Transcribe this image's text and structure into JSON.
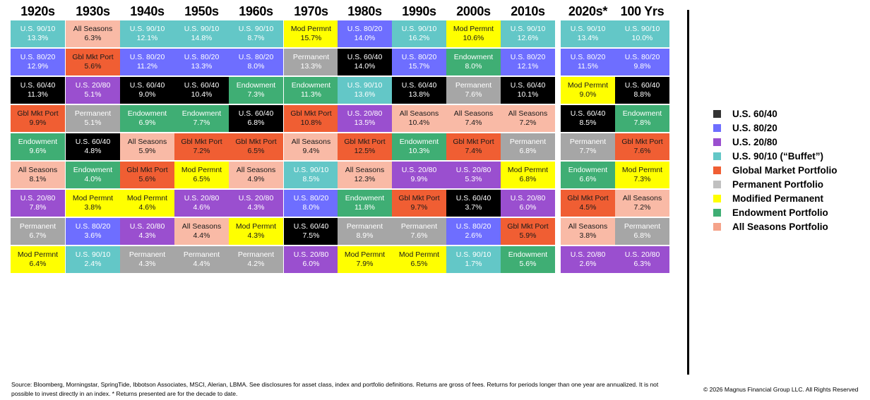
{
  "colors": {
    "6040": "#000000",
    "8020": "#6e6eff",
    "2080": "#9a4fcf",
    "9010": "#63c7c7",
    "gmp": "#f05e33",
    "perm": "#a6a6a6",
    "mod": "#ffff00",
    "endow": "#3fae74",
    "allsea": "#f9baa6"
  },
  "text_colors": {
    "6040": "#ffffff",
    "8020": "#ffffff",
    "2080": "#ffffff",
    "9010": "#ffffff",
    "gmp": "#1a1a1a",
    "perm": "#ffffff",
    "mod": "#1a1a1a",
    "endow": "#ffffff",
    "allsea": "#1a1a1a"
  },
  "short_labels": {
    "6040": "U.S. 60/40",
    "8020": "U.S. 80/20",
    "2080": "U.S. 20/80",
    "9010": "U.S. 90/10",
    "gmp": "Gbl Mkt Port",
    "perm": "Permanent",
    "mod": "Mod Permnt",
    "endow": "Endowment",
    "allsea": "All Seasons"
  },
  "chart_data": {
    "type": "table",
    "title": "",
    "columns": [
      {
        "label": "1920s",
        "cells": [
          [
            "9010",
            "13.3%"
          ],
          [
            "8020",
            "12.9%"
          ],
          [
            "6040",
            "11.3%"
          ],
          [
            "gmp",
            "9.9%"
          ],
          [
            "endow",
            "9.6%"
          ],
          [
            "allsea",
            "8.1%"
          ],
          [
            "2080",
            "7.8%"
          ],
          [
            "perm",
            "6.7%"
          ],
          [
            "mod",
            "6.4%"
          ]
        ]
      },
      {
        "label": "1930s",
        "cells": [
          [
            "allsea",
            "6.3%"
          ],
          [
            "gmp",
            "5.6%"
          ],
          [
            "2080",
            "5.1%"
          ],
          [
            "perm",
            "5.1%"
          ],
          [
            "6040",
            "4.8%"
          ],
          [
            "endow",
            "4.0%"
          ],
          [
            "mod",
            "3.8%"
          ],
          [
            "8020",
            "3.6%"
          ],
          [
            "9010",
            "2.4%"
          ]
        ]
      },
      {
        "label": "1940s",
        "cells": [
          [
            "9010",
            "12.1%"
          ],
          [
            "8020",
            "11.2%"
          ],
          [
            "6040",
            "9.0%"
          ],
          [
            "endow",
            "6.9%"
          ],
          [
            "allsea",
            "5.9%"
          ],
          [
            "gmp",
            "5.6%"
          ],
          [
            "mod",
            "4.6%"
          ],
          [
            "2080",
            "4.3%"
          ],
          [
            "perm",
            "4.3%"
          ]
        ]
      },
      {
        "label": "1950s",
        "cells": [
          [
            "9010",
            "14.8%"
          ],
          [
            "8020",
            "13.3%"
          ],
          [
            "6040",
            "10.4%"
          ],
          [
            "endow",
            "7.7%"
          ],
          [
            "gmp",
            "7.2%"
          ],
          [
            "mod",
            "6.5%"
          ],
          [
            "2080",
            "4.6%"
          ],
          [
            "allsea",
            "4.4%"
          ],
          [
            "perm",
            "4.4%"
          ]
        ]
      },
      {
        "label": "1960s",
        "cells": [
          [
            "9010",
            "8.7%"
          ],
          [
            "8020",
            "8.0%"
          ],
          [
            "endow",
            "7.3%"
          ],
          [
            "6040",
            "6.8%"
          ],
          [
            "gmp",
            "6.5%"
          ],
          [
            "allsea",
            "4.9%"
          ],
          [
            "2080",
            "4.3%"
          ],
          [
            "mod",
            "4.3%"
          ],
          [
            "perm",
            "4.2%"
          ]
        ]
      },
      {
        "label": "1970s",
        "cells": [
          [
            "mod",
            "15.7%"
          ],
          [
            "perm",
            "13.3%"
          ],
          [
            "endow",
            "11.3%"
          ],
          [
            "gmp",
            "10.8%"
          ],
          [
            "allsea",
            "9.4%"
          ],
          [
            "9010",
            "8.5%"
          ],
          [
            "8020",
            "8.0%"
          ],
          [
            "6040",
            "7.5%"
          ],
          [
            "2080",
            "6.0%"
          ]
        ]
      },
      {
        "label": "1980s",
        "cells": [
          [
            "8020",
            "14.0%"
          ],
          [
            "6040",
            "14.0%"
          ],
          [
            "9010",
            "13.6%"
          ],
          [
            "2080",
            "13.5%"
          ],
          [
            "gmp",
            "12.5%"
          ],
          [
            "allsea",
            "12.3%"
          ],
          [
            "endow",
            "11.8%"
          ],
          [
            "perm",
            "8.9%"
          ],
          [
            "mod",
            "7.9%"
          ]
        ]
      },
      {
        "label": "1990s",
        "cells": [
          [
            "9010",
            "16.2%"
          ],
          [
            "8020",
            "15.7%"
          ],
          [
            "6040",
            "13.8%"
          ],
          [
            "allsea",
            "10.4%"
          ],
          [
            "endow",
            "10.3%"
          ],
          [
            "2080",
            "9.9%"
          ],
          [
            "gmp",
            "9.7%"
          ],
          [
            "perm",
            "7.6%"
          ],
          [
            "mod",
            "6.5%"
          ]
        ]
      },
      {
        "label": "2000s",
        "cells": [
          [
            "mod",
            "10.6%"
          ],
          [
            "endow",
            "8.0%"
          ],
          [
            "perm",
            "7.6%"
          ],
          [
            "allsea",
            "7.4%"
          ],
          [
            "gmp",
            "7.4%"
          ],
          [
            "2080",
            "5.3%"
          ],
          [
            "6040",
            "3.7%"
          ],
          [
            "8020",
            "2.6%"
          ],
          [
            "9010",
            "1.7%"
          ]
        ]
      },
      {
        "label": "2010s",
        "cells": [
          [
            "9010",
            "12.6%"
          ],
          [
            "8020",
            "12.1%"
          ],
          [
            "6040",
            "10.1%"
          ],
          [
            "allsea",
            "7.2%"
          ],
          [
            "perm",
            "6.8%"
          ],
          [
            "mod",
            "6.8%"
          ],
          [
            "2080",
            "6.0%"
          ],
          [
            "gmp",
            "5.9%"
          ],
          [
            "endow",
            "5.6%"
          ]
        ]
      },
      {
        "label": "2020s*",
        "cells": [
          [
            "9010",
            "13.4%"
          ],
          [
            "8020",
            "11.5%"
          ],
          [
            "mod",
            "9.0%"
          ],
          [
            "6040",
            "8.5%"
          ],
          [
            "perm",
            "7.7%"
          ],
          [
            "endow",
            "6.6%"
          ],
          [
            "gmp",
            "4.5%"
          ],
          [
            "allsea",
            "3.8%"
          ],
          [
            "2080",
            "2.6%"
          ]
        ]
      },
      {
        "label": "100 Yrs",
        "cells": [
          [
            "9010",
            "10.0%"
          ],
          [
            "8020",
            "9.8%"
          ],
          [
            "6040",
            "8.8%"
          ],
          [
            "endow",
            "7.8%"
          ],
          [
            "gmp",
            "7.6%"
          ],
          [
            "mod",
            "7.3%"
          ],
          [
            "allsea",
            "7.2%"
          ],
          [
            "perm",
            "6.8%"
          ],
          [
            "2080",
            "6.3%"
          ]
        ]
      }
    ]
  },
  "legend": [
    {
      "key": "6040",
      "label": "U.S. 60/40",
      "color": "#333333"
    },
    {
      "key": "8020",
      "label": "U.S. 80/20",
      "color": "#6e6eff"
    },
    {
      "key": "2080",
      "label": "U.S. 20/80",
      "color": "#9a4fcf"
    },
    {
      "key": "9010",
      "label": "U.S. 90/10 (“Buffet”)",
      "color": "#63c7c7"
    },
    {
      "key": "gmp",
      "label": "Global Market Portfolio",
      "color": "#f05e33"
    },
    {
      "key": "perm",
      "label": "Permanent Portfolio",
      "color": "#c0c0c0"
    },
    {
      "key": "mod",
      "label": "Modified Permanent",
      "color": "#ffff00"
    },
    {
      "key": "endow",
      "label": "Endowment Portfolio",
      "color": "#3fae74"
    },
    {
      "key": "allsea",
      "label": "All Seasons Portfolio",
      "color": "#f5a38a"
    }
  ],
  "footer": {
    "source": "Source: Bloomberg, Morningstar, SpringTide, Ibbotson Associates, MSCI, Alerian, LBMA. See disclosures for asset class, index and portfolio definitions. Returns are gross of fees. Returns for periods longer than one year are annualized. It is not possible to invest directly in an index. * Returns presented are for the decade to date.",
    "copyright": "© 2026 Magnus Financial Group LLC. All Rights Reserved"
  }
}
